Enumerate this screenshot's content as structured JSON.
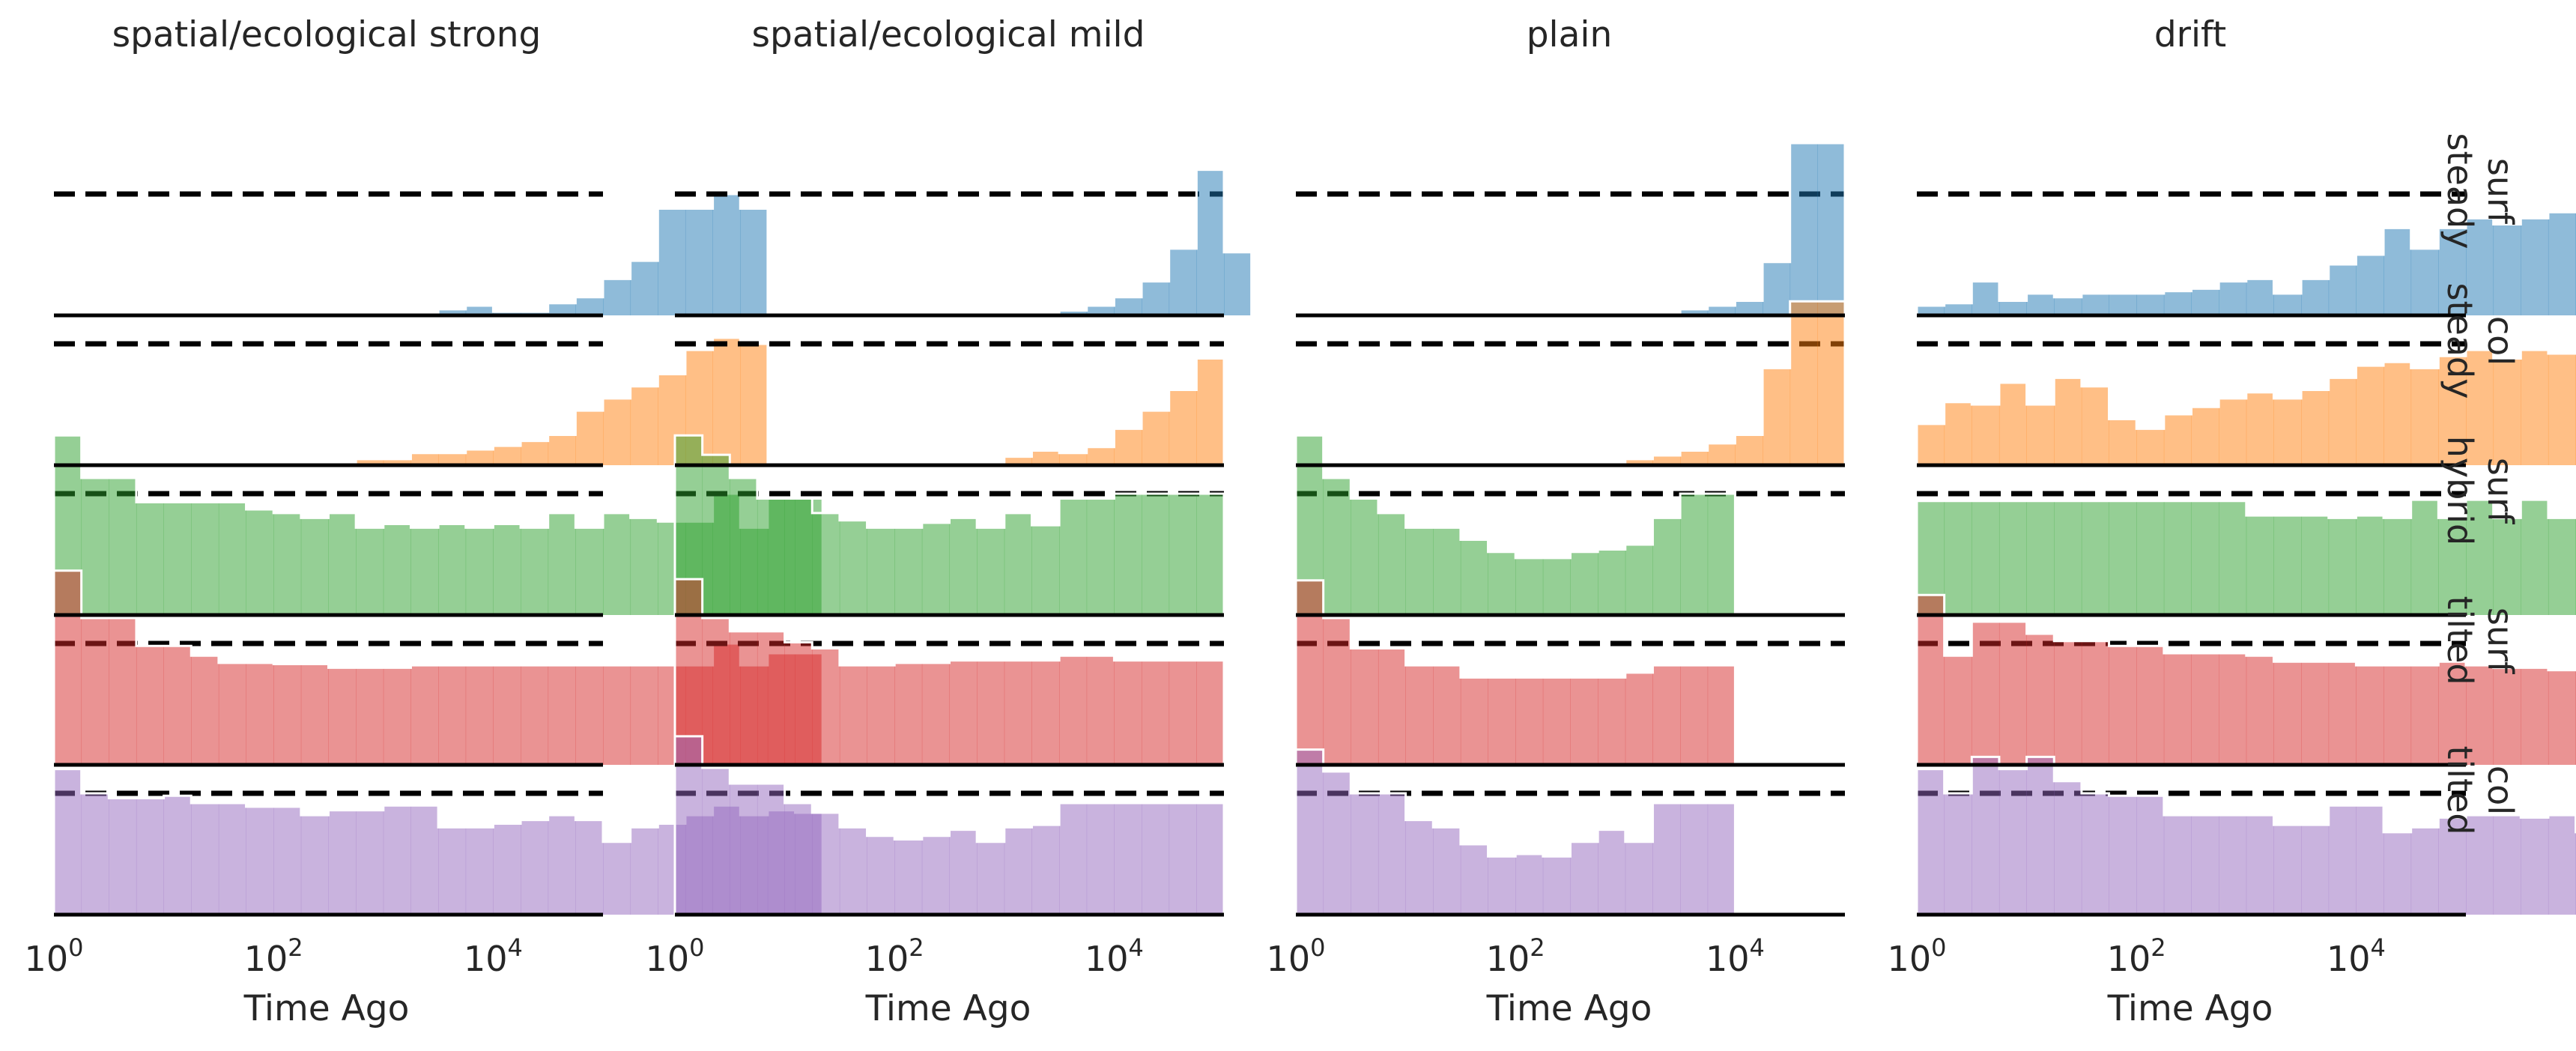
{
  "figure": {
    "panel_titles": [
      "spatial/ecological strong",
      "spatial/ecological mild",
      "plain",
      "drift"
    ],
    "row_labels": [
      [
        "surf",
        "steady"
      ],
      [
        "col",
        "steady"
      ],
      [
        "surf",
        "hybrid"
      ],
      [
        "surf",
        "tilted"
      ],
      [
        "col",
        "tilted"
      ]
    ],
    "xlabel": "Time Ago"
  },
  "chart_data": {
    "type": "area",
    "description_kind": "ridgeline step histograms, log-scaled x axis, 4 panels x 5 rows",
    "x_scale": "log10",
    "xlim": [
      1,
      100000
    ],
    "xticks": [
      {
        "value": 1,
        "base": "10",
        "exp": "0"
      },
      {
        "value": 100,
        "base": "10",
        "exp": "2"
      },
      {
        "value": 10000,
        "base": "10",
        "exp": "4"
      }
    ],
    "row_colors": [
      "#1f77b4",
      "#ff7f0e",
      "#2ca02c",
      "#d62728",
      "#9467bd"
    ],
    "fill_opacity": 0.5,
    "bin_width_log10": 0.25,
    "reference_line_style": "dashed",
    "panels": [
      {
        "title": "spatial/ecological strong",
        "rows": [
          {
            "values": [
              0,
              0,
              0,
              0,
              0,
              0,
              0,
              0,
              0,
              0,
              0,
              0,
              0,
              0,
              0.05,
              0.08,
              0.03,
              0.03,
              0.1,
              0.15,
              0.3,
              0.45,
              0.88,
              0.88,
              1.0,
              0.88
            ]
          },
          {
            "values": [
              0,
              0,
              0,
              0,
              0,
              0,
              0,
              0,
              0,
              0,
              0,
              0.05,
              0.05,
              0.1,
              0.1,
              0.13,
              0.16,
              0.2,
              0.25,
              0.45,
              0.55,
              0.65,
              0.75,
              0.95,
              1.05,
              1.0
            ]
          },
          {
            "values": [
              1.48,
              1.13,
              1.13,
              0.93,
              0.93,
              0.93,
              0.93,
              0.87,
              0.84,
              0.8,
              0.84,
              0.72,
              0.75,
              0.72,
              0.75,
              0.72,
              0.75,
              0.72,
              0.84,
              0.72,
              0.84,
              0.8,
              0.77,
              0.77,
              1.0,
              0.72,
              0.96,
              0.96
            ]
          },
          {
            "values": [
              1.6,
              1.21,
              1.21,
              0.98,
              0.98,
              0.9,
              0.84,
              0.84,
              0.83,
              0.83,
              0.8,
              0.8,
              0.8,
              0.82,
              0.82,
              0.82,
              0.82,
              0.82,
              0.82,
              0.82,
              0.82,
              0.82,
              0.82,
              0.82,
              1.0,
              0.82,
              0.92,
              0.92
            ]
          },
          {
            "values": [
              1.2,
              1.0,
              0.96,
              0.96,
              0.98,
              0.92,
              0.92,
              0.89,
              0.89,
              0.82,
              0.86,
              0.86,
              0.9,
              0.9,
              0.72,
              0.72,
              0.75,
              0.78,
              0.82,
              0.78,
              0.6,
              0.72,
              0.75,
              0.82,
              0.9,
              0.82,
              0.86,
              0.84
            ]
          }
        ]
      },
      {
        "title": "spatial/ecological mild",
        "rows": [
          {
            "values": [
              0,
              0,
              0,
              0,
              0,
              0,
              0,
              0,
              0,
              0,
              0,
              0,
              0,
              0,
              0.04,
              0.08,
              0.15,
              0.28,
              0.55,
              1.2,
              0.52
            ]
          },
          {
            "values": [
              0,
              0,
              0,
              0,
              0,
              0,
              0,
              0,
              0,
              0,
              0,
              0,
              0.07,
              0.12,
              0.1,
              0.15,
              0.3,
              0.45,
              0.62,
              0.88
            ]
          },
          {
            "values": [
              1.48,
              1.32,
              1.13,
              0.96,
              0.96,
              0.84,
              0.78,
              0.72,
              0.72,
              0.76,
              0.8,
              0.72,
              0.84,
              0.74,
              0.96,
              0.96,
              1.0,
              1.0,
              1.0,
              1.0
            ]
          },
          {
            "values": [
              1.53,
              1.21,
              1.1,
              1.1,
              1.01,
              0.96,
              0.82,
              0.82,
              0.84,
              0.84,
              0.86,
              0.86,
              0.86,
              0.86,
              0.9,
              0.9,
              0.86,
              0.86,
              0.86,
              0.86
            ]
          },
          {
            "values": [
              1.47,
              1.21,
              1.08,
              1.08,
              0.92,
              0.84,
              0.72,
              0.65,
              0.62,
              0.65,
              0.7,
              0.6,
              0.72,
              0.74,
              0.92,
              0.92,
              0.92,
              0.92,
              0.92,
              0.92
            ]
          }
        ]
      },
      {
        "title": "plain",
        "rows": [
          {
            "values": [
              0,
              0,
              0,
              0,
              0,
              0,
              0,
              0,
              0,
              0,
              0,
              0,
              0,
              0,
              0.05,
              0.08,
              0.12,
              0.44,
              1.42,
              1.42
            ]
          },
          {
            "values": [
              0,
              0,
              0,
              0,
              0,
              0,
              0,
              0,
              0,
              0,
              0,
              0,
              0.05,
              0.08,
              0.12,
              0.18,
              0.25,
              0.8,
              1.35,
              1.35
            ]
          },
          {
            "values": [
              1.48,
              1.13,
              0.96,
              0.84,
              0.72,
              0.72,
              0.62,
              0.52,
              0.47,
              0.47,
              0.52,
              0.54,
              0.58,
              0.8,
              1.0,
              1.0
            ]
          },
          {
            "values": [
              1.52,
              1.21,
              0.96,
              0.96,
              0.82,
              0.82,
              0.72,
              0.72,
              0.72,
              0.72,
              0.72,
              0.72,
              0.76,
              0.82,
              0.82,
              0.82
            ]
          },
          {
            "values": [
              1.36,
              1.18,
              1.0,
              1.0,
              0.78,
              0.72,
              0.58,
              0.48,
              0.5,
              0.48,
              0.6,
              0.7,
              0.6,
              0.92,
              0.92,
              0.92
            ]
          }
        ]
      },
      {
        "title": "drift",
        "rows": [
          {
            "values": [
              0.08,
              0.1,
              0.28,
              0.12,
              0.18,
              0.15,
              0.18,
              0.18,
              0.18,
              0.2,
              0.22,
              0.28,
              0.3,
              0.18,
              0.3,
              0.42,
              0.5,
              0.72,
              0.55,
              0.72,
              0.8,
              0.75,
              0.8,
              0.85,
              0.88,
              0.95,
              1.0,
              1.0
            ]
          },
          {
            "values": [
              0.34,
              0.52,
              0.5,
              0.68,
              0.5,
              0.72,
              0.65,
              0.38,
              0.3,
              0.42,
              0.48,
              0.55,
              0.6,
              0.55,
              0.62,
              0.72,
              0.82,
              0.85,
              0.8,
              0.9,
              0.95,
              0.88,
              0.95,
              0.92,
              1.0,
              0.92,
              1.0,
              1.0
            ]
          },
          {
            "values": [
              0.94,
              0.94,
              0.94,
              0.94,
              0.94,
              0.94,
              0.94,
              0.94,
              0.94,
              0.94,
              0.94,
              0.94,
              0.82,
              0.82,
              0.82,
              0.8,
              0.82,
              0.8,
              0.95,
              0.8,
              0.95,
              0.8,
              0.95,
              0.8,
              0.95,
              0.8,
              0.95,
              0.95
            ]
          },
          {
            "values": [
              1.4,
              0.9,
              1.18,
              1.18,
              1.08,
              1.02,
              1.02,
              0.98,
              0.98,
              0.92,
              0.92,
              0.92,
              0.9,
              0.85,
              0.85,
              0.85,
              0.82,
              0.82,
              0.82,
              0.85,
              0.82,
              0.8,
              0.8,
              0.78,
              0.98,
              0.78,
              0.9,
              0.9
            ]
          },
          {
            "values": [
              1.2,
              1.0,
              1.3,
              1.2,
              1.3,
              1.1,
              1.0,
              0.98,
              0.98,
              0.82,
              0.82,
              0.82,
              0.82,
              0.74,
              0.74,
              0.9,
              0.9,
              0.68,
              0.72,
              0.8,
              0.82,
              0.82,
              0.8,
              0.82,
              0.68,
              0.86,
              0.82,
              0.84
            ]
          }
        ]
      }
    ]
  }
}
